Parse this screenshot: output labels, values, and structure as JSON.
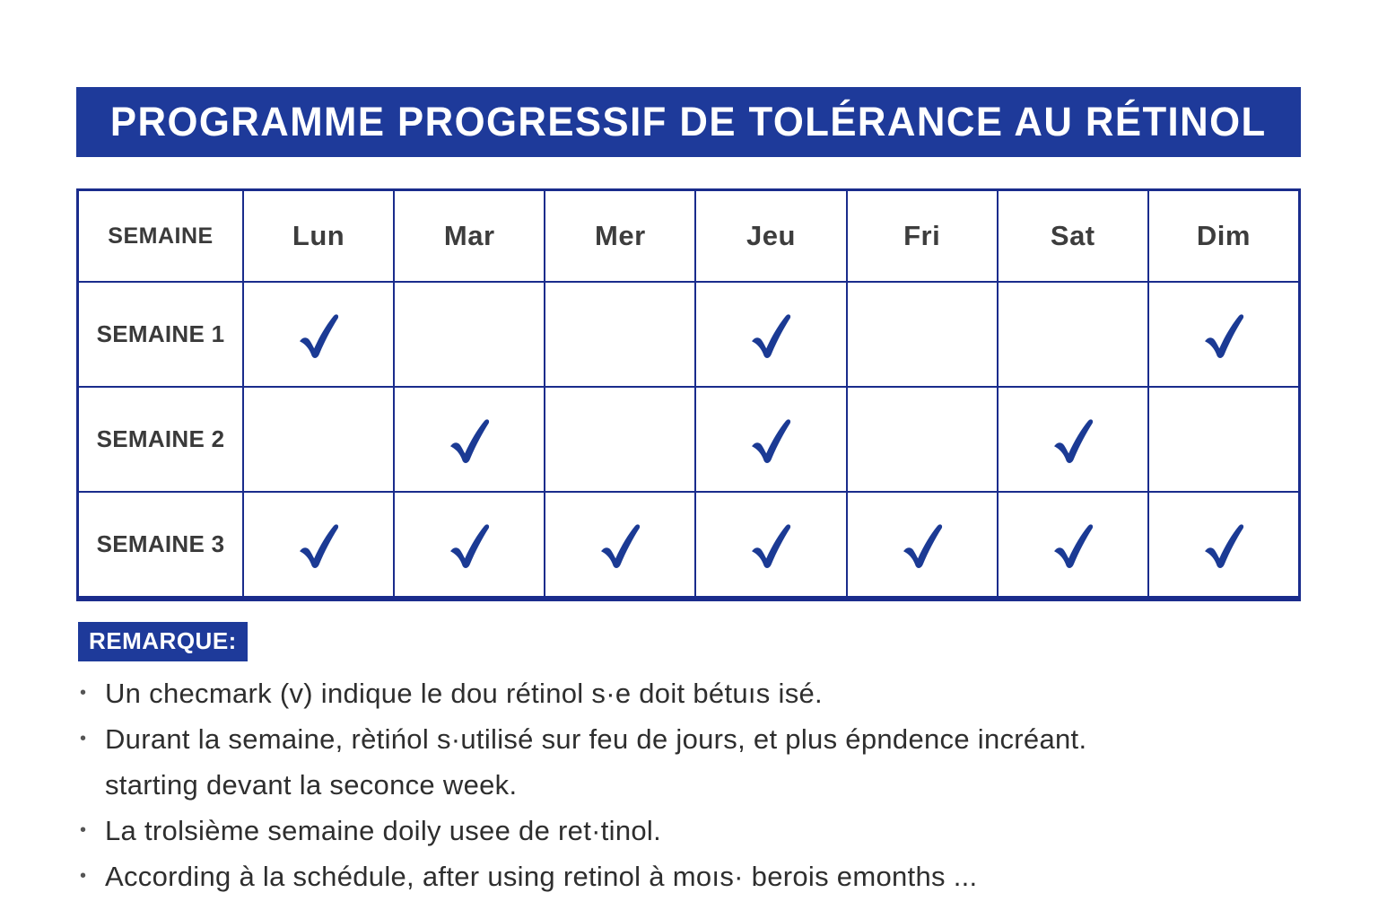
{
  "title": "PROGRAMME PROGRESSIF DE TOLÉRANCE AU RÉTINOL",
  "colors": {
    "primary_blue": "#1e3a9a",
    "table_border_blue": "#1a2c8c",
    "check_blue": "#1b3a94",
    "header_text": "#3a3a3a",
    "note_text": "#2e2e2e"
  },
  "table": {
    "header": [
      "SEMAINE",
      "Lun",
      "Mar",
      "Mer",
      "Jeu",
      "Fri",
      "Sat",
      "Dim"
    ],
    "check_icon": "check-icon",
    "rows": [
      {
        "label": "SEMAINE 1",
        "checks": [
          true,
          false,
          false,
          true,
          false,
          false,
          true
        ]
      },
      {
        "label": "SEMAINE 2",
        "checks": [
          false,
          true,
          false,
          true,
          false,
          true,
          false
        ]
      },
      {
        "label": "SEMAINE 3",
        "checks": [
          true,
          true,
          true,
          true,
          true,
          true,
          true
        ]
      }
    ]
  },
  "notes": {
    "label": "REMARQUE:",
    "items": [
      {
        "lines": [
          "Un checmark (v) indique le dou rétinol s·e doit bétuıs isé."
        ]
      },
      {
        "lines": [
          "Durant la semaine, rètińol s·utilisé sur feu de jours, et plus épndence incréant.",
          "starting devant la seconce week."
        ]
      },
      {
        "lines": [
          "La trolsième semaine doily usee de ret·tinol."
        ]
      },
      {
        "lines": [
          "According à la  schédule, after using retinol à moıs· berois emonths ..."
        ]
      }
    ]
  }
}
